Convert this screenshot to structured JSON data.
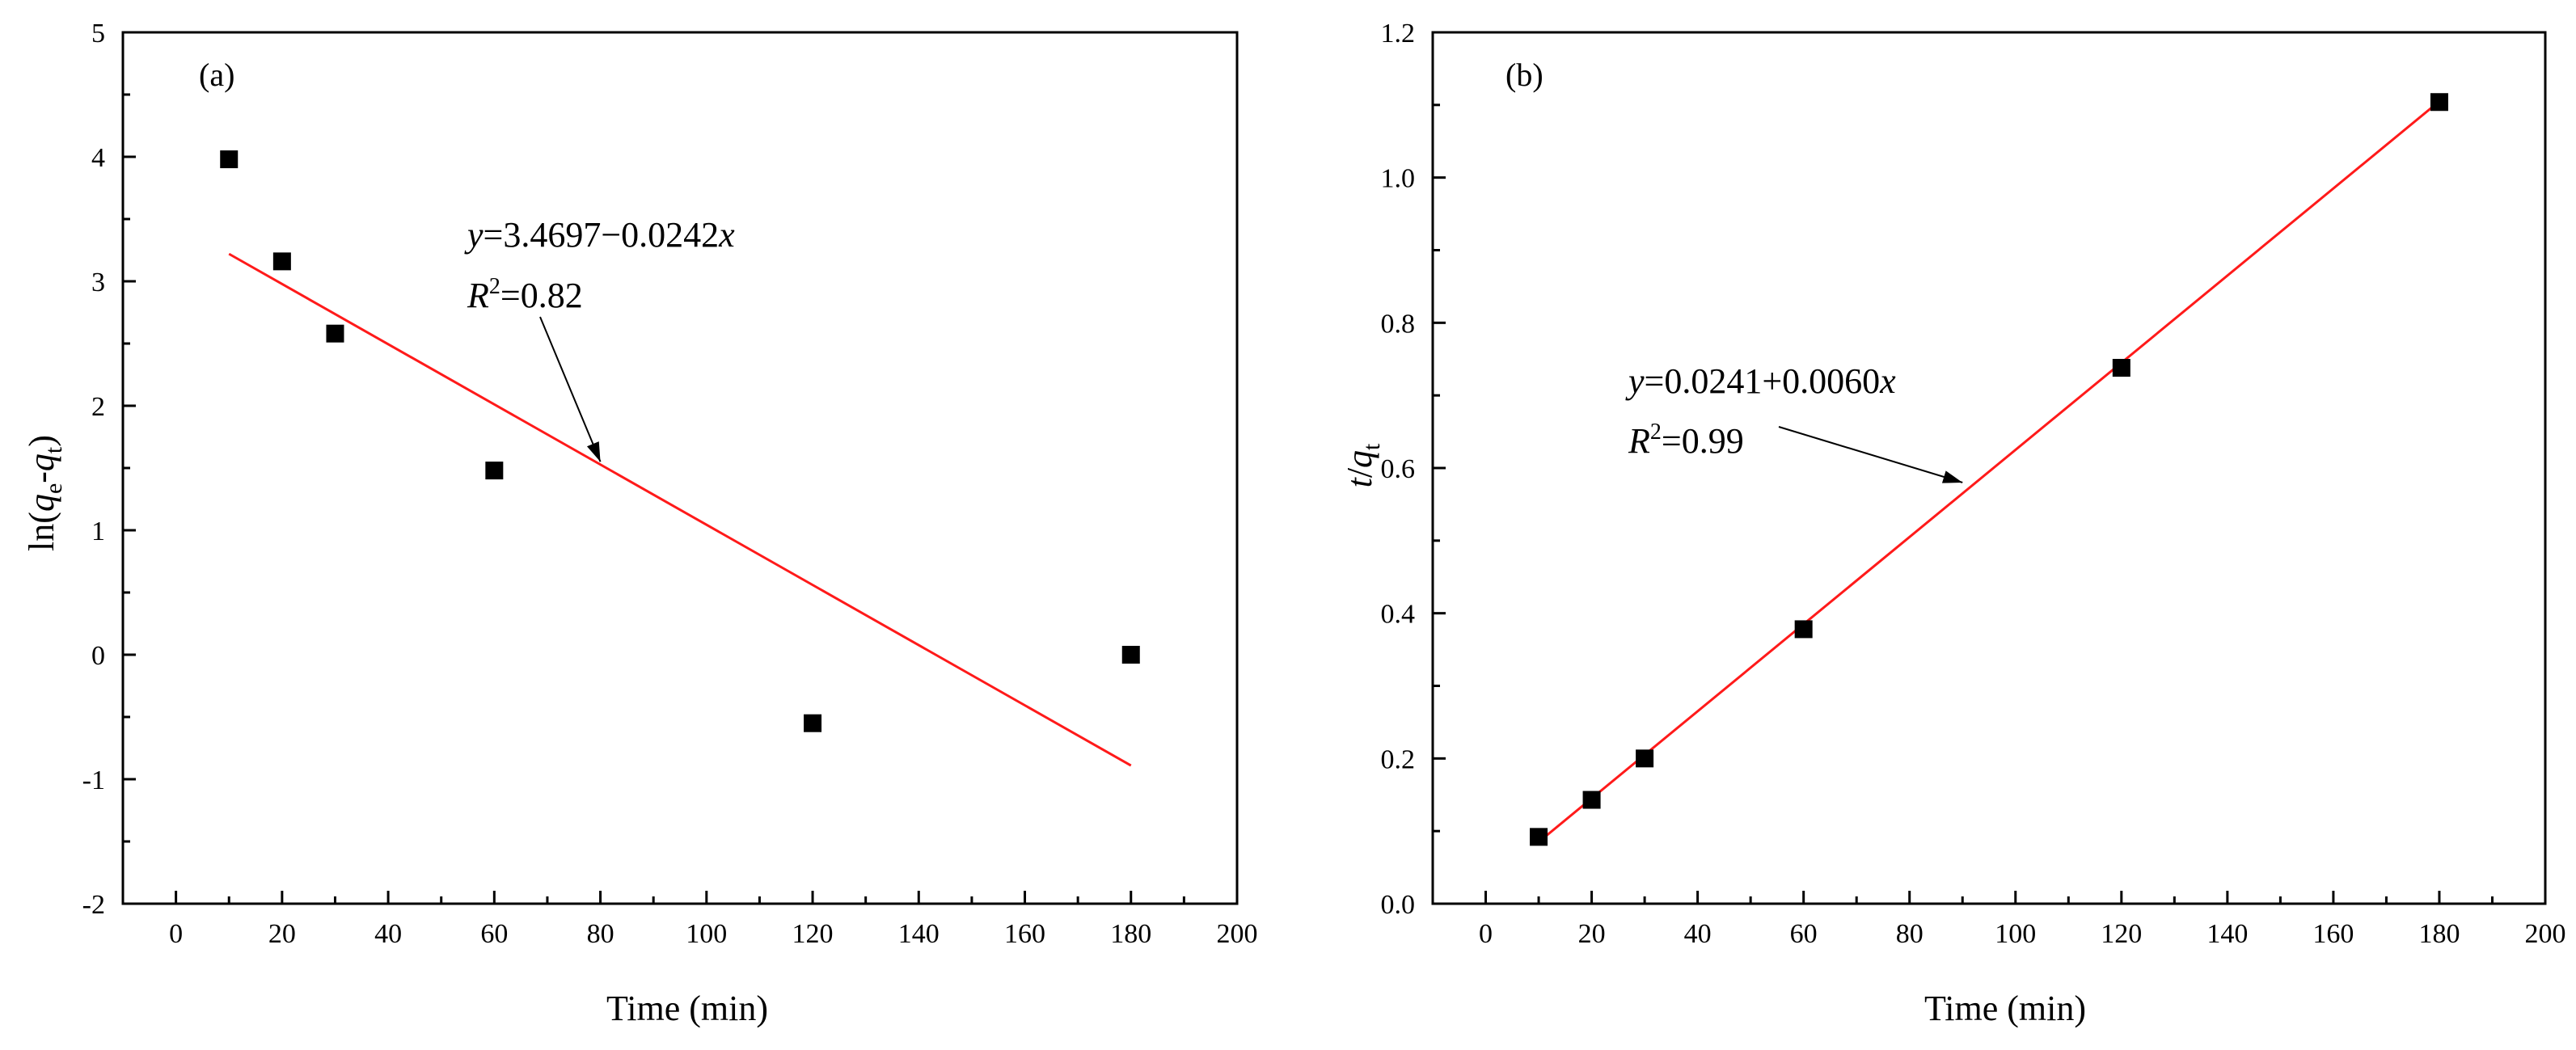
{
  "chart_data": [
    {
      "panel": "(a)",
      "type": "scatter",
      "xlabel": "Time (min)",
      "ylabel": {
        "prefix": "ln(",
        "q1": "q",
        "sub1": "e",
        "dash": "-",
        "q2": "q",
        "sub2": "t",
        "suffix": ")"
      },
      "xlim": [
        -10,
        200
      ],
      "ylim": [
        -2,
        5
      ],
      "xticks": [
        0,
        20,
        40,
        60,
        80,
        100,
        120,
        140,
        160,
        180,
        200
      ],
      "yticks": [
        -2,
        -1,
        0,
        1,
        2,
        3,
        4,
        5
      ],
      "ytick_labels": [
        "-2",
        "-1",
        "0",
        "1",
        "2",
        "3",
        "4",
        "5"
      ],
      "series": [
        {
          "name": "data",
          "x": [
            10,
            20,
            30,
            60,
            120,
            180
          ],
          "y": [
            3.98,
            3.16,
            2.58,
            1.48,
            -0.55,
            0.0
          ]
        }
      ],
      "fit": {
        "x": [
          10,
          180
        ],
        "y": [
          3.22,
          -0.89
        ],
        "color": "#ff1a1a"
      },
      "annotation": {
        "line1": {
          "v": "y",
          "eq": "=3.4697−0.0242",
          "x": "x"
        },
        "line2": {
          "r": "R",
          "sup": "2",
          "val": "=0.82"
        },
        "arrow_to": [
          80,
          1.55
        ]
      }
    },
    {
      "panel": "(b)",
      "type": "scatter",
      "xlabel": "Time (min)",
      "ylabel": {
        "t": "t",
        "slash": "/",
        "q": "q",
        "sub": "t"
      },
      "xlim": [
        -10,
        200
      ],
      "ylim": [
        0,
        1.2
      ],
      "xticks": [
        0,
        20,
        40,
        60,
        80,
        100,
        120,
        140,
        160,
        180,
        200
      ],
      "yticks": [
        0,
        0.2,
        0.4,
        0.6,
        0.8,
        1.0,
        1.2
      ],
      "ytick_labels": [
        "0.0",
        "0.2",
        "0.4",
        "0.6",
        "0.8",
        "1.0",
        "1.2"
      ],
      "series": [
        {
          "name": "data",
          "x": [
            10,
            20,
            30,
            60,
            120,
            180
          ],
          "y": [
            0.092,
            0.143,
            0.2,
            0.378,
            0.738,
            1.104
          ]
        }
      ],
      "fit": {
        "x": [
          10,
          180
        ],
        "y": [
          0.085,
          1.105
        ],
        "color": "#ff1a1a"
      },
      "annotation": {
        "line1": {
          "v": "y",
          "eq": "=0.0241+0.0060",
          "x": "x"
        },
        "line2": {
          "r": "R",
          "sup": "2",
          "val": "=0.99"
        },
        "arrow_to": [
          90,
          0.58
        ]
      }
    }
  ]
}
